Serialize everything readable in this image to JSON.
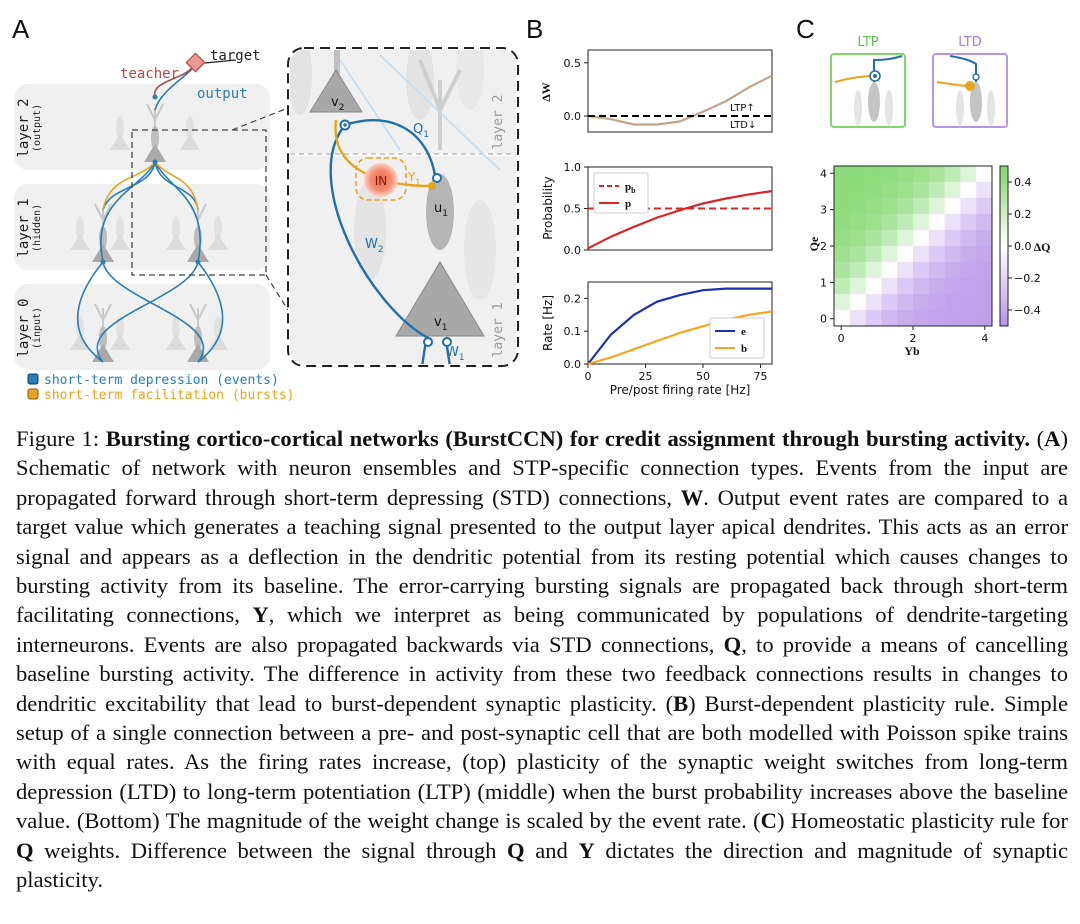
{
  "panels": {
    "a": {
      "letter": "A",
      "teacher": "teacher",
      "target": "target",
      "output": "output",
      "layers": [
        {
          "name": "layer 2",
          "sub": "(output)"
        },
        {
          "name": "layer 1",
          "sub": "(hidden)"
        },
        {
          "name": "layer 0",
          "sub": "(input)"
        }
      ],
      "zoom": {
        "v2": "v",
        "v2_sub": "2",
        "q1": "Q",
        "q1_sub": "1",
        "in_label": "IN",
        "y1": "Y",
        "y1_sub": "1",
        "u1": "u",
        "u1_sub": "1",
        "w2": "W",
        "w2_sub": "2",
        "v1": "v",
        "v1_sub": "1",
        "w1": "W",
        "w1_sub": "1",
        "layer2": "layer 2",
        "layer1": "layer 1"
      },
      "legend": [
        {
          "label": "short-term depression (events)",
          "color": "#2a7db5"
        },
        {
          "label": "short-term facilitation (bursts)",
          "color": "#e6a520"
        }
      ]
    },
    "b": {
      "letter": "B",
      "top_ylabel": "ΔW",
      "ltp": "LTP",
      "ltd": "LTD",
      "mid_ylabel": "Probability",
      "bot_ylabel": "Rate [Hz]",
      "xlabel": "Pre/post firing rate [Hz]"
    },
    "c": {
      "letter": "C",
      "ltp": "LTP",
      "ltd": "LTD",
      "xlabel": "Yb",
      "ylabel": "Qe",
      "colorbar_label": "ΔQ"
    }
  },
  "chart_data": [
    {
      "type": "line",
      "ylabel": "ΔW",
      "xlim": [
        0,
        80
      ],
      "ylim": [
        -0.15,
        0.62
      ],
      "yticks": [
        0.0,
        0.5
      ],
      "x": [
        0,
        10,
        20,
        30,
        40,
        50,
        60,
        70,
        80
      ],
      "series": [
        {
          "name": "",
          "color": "#c2a58a",
          "values": [
            0.0,
            -0.03,
            -0.08,
            -0.08,
            -0.05,
            0.04,
            0.14,
            0.27,
            0.38
          ]
        },
        {
          "name": "",
          "color": "#000000",
          "dashed": true,
          "values": [
            0,
            0,
            0,
            0,
            0,
            0,
            0,
            0,
            0
          ]
        }
      ]
    },
    {
      "type": "line",
      "ylabel": "Probability",
      "xlim": [
        0,
        80
      ],
      "ylim": [
        0,
        1.0
      ],
      "yticks": [
        0.0,
        0.5,
        1.0
      ],
      "x": [
        0,
        10,
        20,
        30,
        40,
        50,
        60,
        70,
        80
      ],
      "series": [
        {
          "name": "p_b",
          "color": "#d62728",
          "dashed": true,
          "values": [
            0.5,
            0.5,
            0.5,
            0.5,
            0.5,
            0.5,
            0.5,
            0.5,
            0.5
          ]
        },
        {
          "name": "p",
          "color": "#d62728",
          "values": [
            0.02,
            0.16,
            0.28,
            0.39,
            0.48,
            0.56,
            0.62,
            0.67,
            0.71
          ]
        }
      ]
    },
    {
      "type": "line",
      "ylabel": "Rate [Hz]",
      "xlabel": "Pre/post firing rate [Hz]",
      "xlim": [
        0,
        80
      ],
      "ylim": [
        0,
        0.25
      ],
      "yticks": [
        0.0,
        0.1,
        0.2
      ],
      "xticks": [
        0,
        25,
        50,
        75
      ],
      "x": [
        0,
        10,
        20,
        30,
        40,
        50,
        60,
        70,
        80
      ],
      "series": [
        {
          "name": "e",
          "color": "#1f2fb5",
          "values": [
            0.0,
            0.09,
            0.15,
            0.19,
            0.21,
            0.225,
            0.23,
            0.23,
            0.23
          ]
        },
        {
          "name": "b",
          "color": "#f0a820",
          "values": [
            0.0,
            0.02,
            0.045,
            0.07,
            0.095,
            0.115,
            0.135,
            0.15,
            0.16
          ]
        }
      ]
    },
    {
      "type": "heatmap",
      "xlabel": "Yb",
      "ylabel": "Qe",
      "xticks": [
        0,
        2,
        4
      ],
      "yticks": [
        0,
        1,
        2,
        3,
        4
      ],
      "colorbar_label": "ΔQ",
      "colorbar_ticks": [
        0.4,
        0.2,
        0.0,
        -0.2,
        -0.4
      ],
      "range": [
        -0.5,
        0.5
      ]
    }
  ],
  "caption": {
    "figure_label": "Figure 1:",
    "title": "Bursting cortico-cortical networks (BurstCCN) for credit assignment through bursting activity.",
    "a_tag": "A",
    "a_text_1": " Schematic of network with neuron ensembles and STP-specific connection types. Events from the input are propagated forward through short-term depressing (STD) connections, ",
    "w": "W",
    "a_text_2": ". Output event rates are compared to a target value which generates a teaching signal presented to the output layer apical dendrites. This acts as an error signal and appears as a deflection in the dendritic potential from its resting potential which causes changes to bursting activity from its baseline. The error-carrying bursting signals are propagated back through short-term facilitating connections, ",
    "y": "Y",
    "a_text_3": ", which we interpret as being communicated by populations of dendrite-targeting interneurons. Events are also propagated backwards via STD connections, ",
    "q": "Q",
    "a_text_4": ", to provide a means of cancelling baseline bursting activity. The difference in activity from these two feedback connections results in changes to dendritic excitability that lead to burst-dependent synaptic plasticity. ",
    "b_tag": "B",
    "b_text": " Burst-dependent plasticity rule. Simple setup of a single connection between a pre- and post-synaptic cell that are both modelled with Poisson spike trains with equal rates. As the firing rates increase, (top) plasticity of the synaptic weight switches from long-term depression (LTD) to long-term potentiation (LTP) (middle) when the burst probability increases above the baseline value. (Bottom) The magnitude of the weight change is scaled by the event rate. ",
    "c_tag": "C",
    "c_text_1": " Homeostatic plasticity rule for ",
    "q2": "Q",
    "c_text_2": " weights. Difference between the signal through ",
    "q3": "Q",
    "c_text_3": " and ",
    "y2": "Y",
    "c_text_4": " dictates the direction and magnitude of synaptic plasticity."
  }
}
